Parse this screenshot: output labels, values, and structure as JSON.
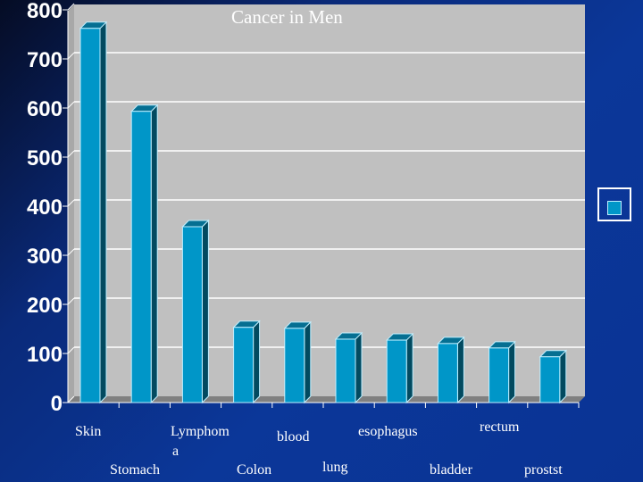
{
  "chart_data": {
    "type": "bar",
    "title": "Cancer in Men",
    "categories": [
      "Skin",
      "Stomach",
      "Lymphoma",
      "Colon",
      "blood",
      "lung",
      "esophagus",
      "bladder",
      "rectum",
      "prostst"
    ],
    "category_labels": [
      "Skin",
      "Stomach",
      "Lymphom\na",
      "Colon",
      "blood",
      "lung",
      "esophagus",
      "bladder",
      "rectum",
      "prostst"
    ],
    "values": [
      764,
      595,
      360,
      155,
      153,
      131,
      129,
      122,
      113,
      95
    ],
    "ylim": [
      0,
      800
    ],
    "yticks": [
      0,
      100,
      200,
      300,
      400,
      500,
      600,
      700,
      800
    ],
    "xlabel": "",
    "ylabel": "",
    "grid": true,
    "legend": "right",
    "colors": {
      "bar": "#0096c8",
      "bar_side": "#024a60",
      "bar_top": "#056f92",
      "wall": "#c0c0c0",
      "floor": "#808080"
    }
  }
}
